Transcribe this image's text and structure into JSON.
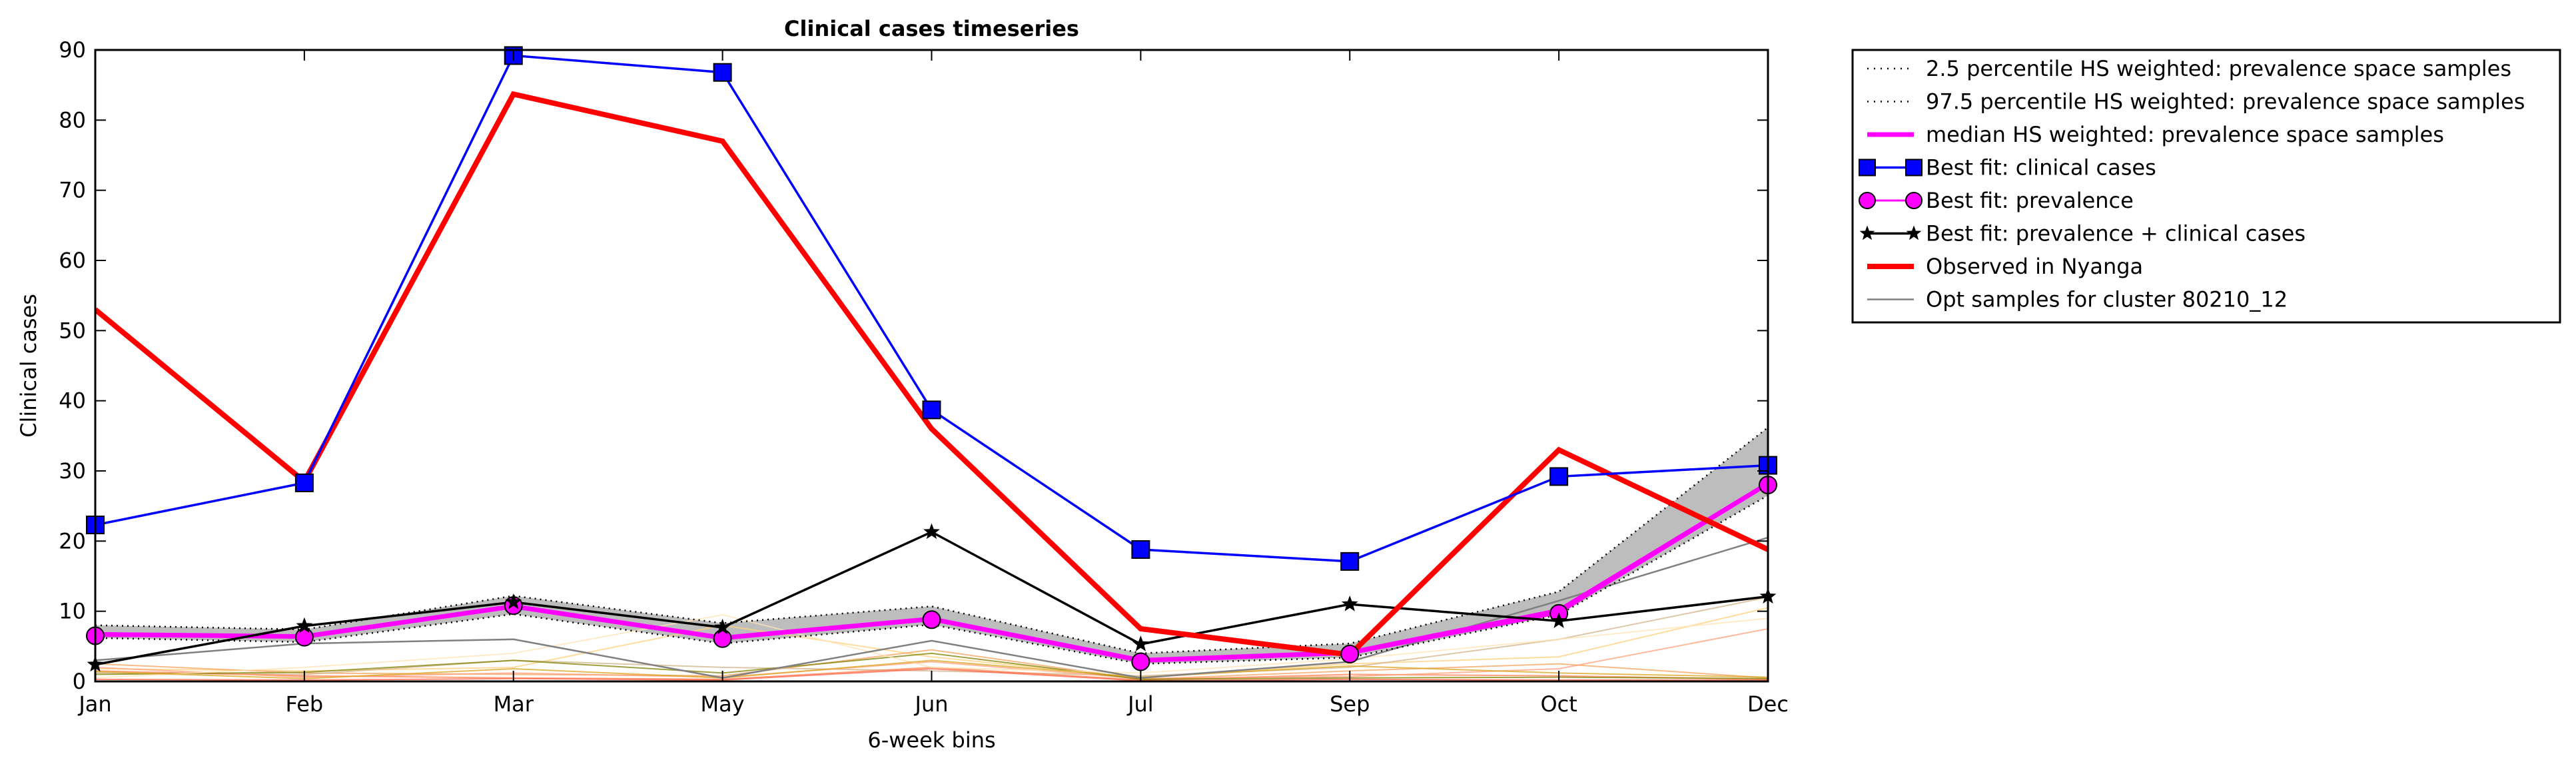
{
  "chart_data": {
    "type": "line",
    "title": "Clinical cases timeseries",
    "xlabel": "6-week bins",
    "ylabel": "Clinical cases",
    "categories": [
      "Jan",
      "Feb",
      "Mar",
      "May",
      "Jun",
      "Jul",
      "Sep",
      "Oct",
      "Dec"
    ],
    "ylim": [
      0,
      90
    ],
    "yticks": [
      0,
      10,
      20,
      30,
      40,
      50,
      60,
      70,
      80,
      90
    ],
    "grid": false,
    "legend_position": "outside-right",
    "legend": [
      "2.5 percentile HS weighted: prevalence space samples",
      "97.5 percentile HS weighted: prevalence space samples",
      "median HS weighted: prevalence space samples",
      "Best fit: clinical cases",
      "Best fit: prevalence",
      "Best fit: prevalence + clinical cases",
      "Observed in Nyanga",
      "Opt samples for cluster 80210_12"
    ],
    "series": [
      {
        "name": "2.5 percentile HS weighted: prevalence space samples",
        "color": "#000000",
        "values": [
          6.2,
          5.6,
          9.6,
          5.4,
          8.1,
          2.5,
          3.4,
          9.5,
          26.5
        ]
      },
      {
        "name": "97.5 percentile HS weighted: prevalence space samples",
        "color": "#000000",
        "values": [
          8.0,
          7.4,
          12.2,
          8.3,
          10.7,
          4.0,
          5.4,
          12.8,
          36.2
        ]
      },
      {
        "name": "median HS weighted: prevalence space samples",
        "color": "#ff00ff",
        "values": [
          6.7,
          6.4,
          10.7,
          6.2,
          8.9,
          3.0,
          4.1,
          10.1,
          28.2
        ]
      },
      {
        "name": "Best fit: clinical cases",
        "color": "#0000ff",
        "values": [
          22.3,
          28.3,
          89.2,
          86.8,
          38.7,
          18.8,
          17.1,
          29.2,
          30.8
        ]
      },
      {
        "name": "Best fit: prevalence",
        "color": "#ff00ff",
        "values": [
          6.5,
          6.3,
          10.8,
          6.1,
          8.8,
          2.8,
          3.9,
          9.7,
          28.0
        ]
      },
      {
        "name": "Best fit: prevalence + clinical cases",
        "color": "#000000",
        "values": [
          2.4,
          7.9,
          11.3,
          7.7,
          21.3,
          5.3,
          11.0,
          8.6,
          12.1
        ]
      },
      {
        "name": "Observed in Nyanga",
        "color": "#ff0000",
        "values": [
          53.0,
          28.5,
          83.7,
          77.0,
          36.0,
          7.5,
          3.8,
          33.0,
          18.8
        ]
      },
      {
        "name": "Opt samples for cluster 80210_12",
        "color": "#808080",
        "values": [
          3.0,
          5.4,
          6.0,
          0.5,
          5.8,
          0.5,
          2.8,
          11.5,
          20.5
        ]
      }
    ],
    "extra_lines": [
      {
        "color": "#ffd27f",
        "values": [
          1.8,
          1.5,
          2.0,
          8.0,
          3.5,
          0.5,
          2.5,
          3.5,
          10.5
        ]
      },
      {
        "color": "#f4a460",
        "values": [
          2.5,
          1.2,
          1.0,
          0.8,
          4.5,
          0.3,
          1.5,
          2.5,
          0.5
        ]
      },
      {
        "color": "#d2b48c",
        "values": [
          1.2,
          1.0,
          3.0,
          2.0,
          1.5,
          0.8,
          2.0,
          6.0,
          12.0
        ]
      },
      {
        "color": "#ff7f50",
        "values": [
          1.5,
          0.8,
          0.5,
          0.3,
          2.0,
          0.2,
          1.0,
          0.8,
          0.3
        ]
      },
      {
        "color": "#ffa07a",
        "values": [
          2.0,
          0.6,
          1.2,
          0.6,
          2.8,
          0.4,
          0.7,
          1.8,
          7.5
        ]
      },
      {
        "color": "#808000",
        "values": [
          1.0,
          1.3,
          3.0,
          1.2,
          4.0,
          0.3,
          0.5,
          0.6,
          0.4
        ]
      },
      {
        "color": "#ffe4b5",
        "values": [
          0.5,
          2.0,
          4.0,
          9.5,
          2.0,
          1.2,
          3.2,
          6.0,
          9.0
        ]
      },
      {
        "color": "#ff6347",
        "values": [
          0.3,
          0.2,
          0.4,
          0.2,
          1.8,
          0.1,
          0.3,
          0.2,
          0.2
        ]
      },
      {
        "color": "#daa520",
        "values": [
          1.4,
          0.4,
          1.8,
          0.5,
          3.0,
          0.6,
          2.2,
          1.2,
          0.6
        ]
      }
    ]
  }
}
